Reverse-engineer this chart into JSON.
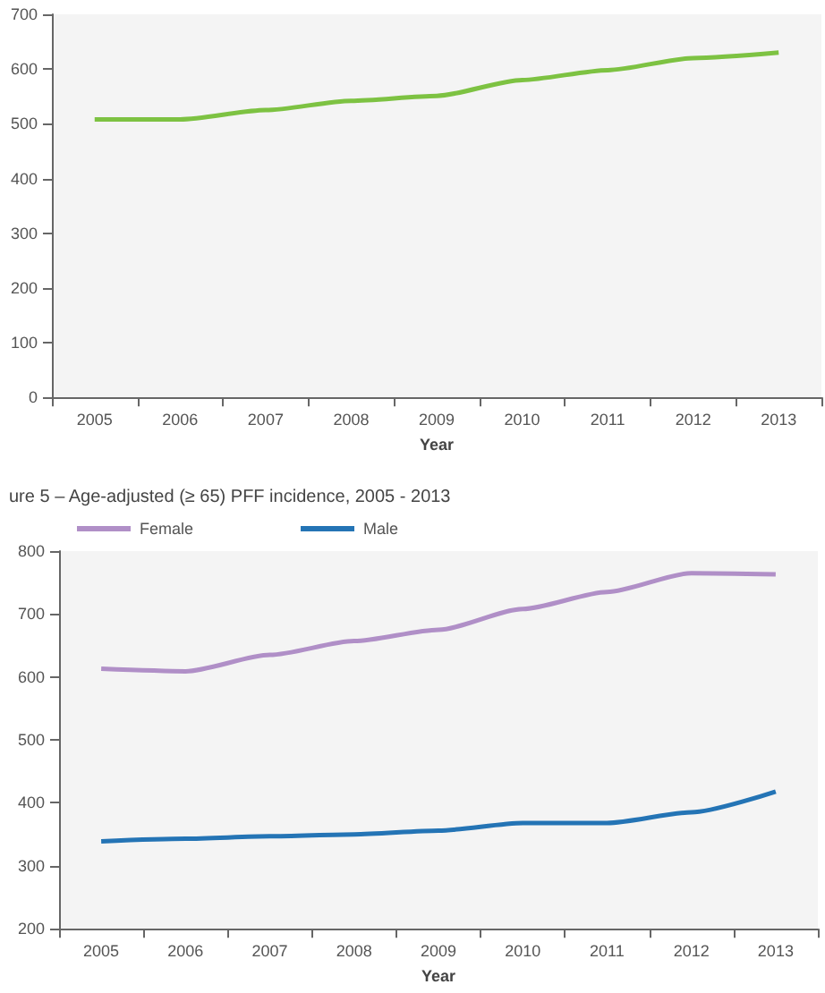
{
  "chart_data": [
    {
      "type": "line",
      "xlabel": "Year",
      "categories": [
        "2005",
        "2006",
        "2007",
        "2008",
        "2009",
        "2010",
        "2011",
        "2012",
        "2013"
      ],
      "series": [
        {
          "color": "#7dc242",
          "values": [
            508,
            508,
            525,
            542,
            551,
            580,
            598,
            620,
            630
          ]
        }
      ],
      "ylim": [
        0,
        700
      ],
      "yticks": [
        0,
        100,
        200,
        300,
        400,
        500,
        600,
        700
      ],
      "grid": false,
      "legend": false,
      "marker": "none"
    },
    {
      "type": "line",
      "title": "ure 5 – Age-adjusted (≥ 65) PFF incidence, 2005 - 2013",
      "xlabel": "Year",
      "categories": [
        "2005",
        "2006",
        "2007",
        "2008",
        "2009",
        "2010",
        "2011",
        "2012",
        "2013"
      ],
      "series": [
        {
          "name": "Female",
          "color": "#b08fc7",
          "values": [
            613,
            609,
            635,
            657,
            675,
            708,
            735,
            765,
            763
          ]
        },
        {
          "name": "Male",
          "color": "#2474b5",
          "values": [
            339,
            343,
            347,
            350,
            356,
            368,
            368,
            385,
            418
          ]
        }
      ],
      "ylim": [
        200,
        800
      ],
      "yticks": [
        200,
        300,
        400,
        500,
        600,
        700,
        800
      ],
      "grid": false,
      "legend": "top left",
      "marker": "none"
    }
  ]
}
